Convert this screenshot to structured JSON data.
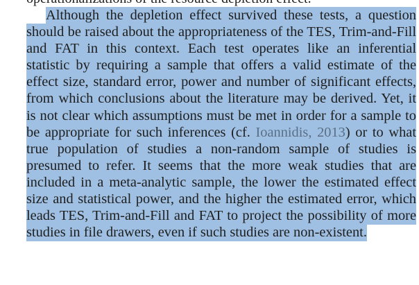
{
  "document": {
    "top_fragment": "operationalizations of the resource depletion effect.",
    "paragraph": {
      "before_citation": "Although the depletion effect survived these tests, a question should be raised about the appropriateness of the TES, Trim-and-Fill and FAT in this context. Each test operates like an inferential statistic by requiring a sample that offers a valid estimate of the effect size, standard error, power and number of significant effects, from which conclusions about the literature may be derived. Yet, it is not clear which assumptions must be met in order for a sample to be appropriate for such inferences (cf. ",
      "citation": "Ioannidis, 2013",
      "after_citation": ") or to what true population of studies a non-random sample of studies is presumed to refer. It seems that the more weak studies that are included in a meta-analytic sample, the lower the estimated effect size and statistical power, and the higher the estimated error, which leads TES, Trim-and-Fill and FAT to project the possibility of more studies in file drawers, even if such studies are non-existent."
    }
  },
  "colors": {
    "selection_highlight": "#9fc0e2",
    "text": "#1e1e1e",
    "citation_link": "#5a6f86"
  }
}
